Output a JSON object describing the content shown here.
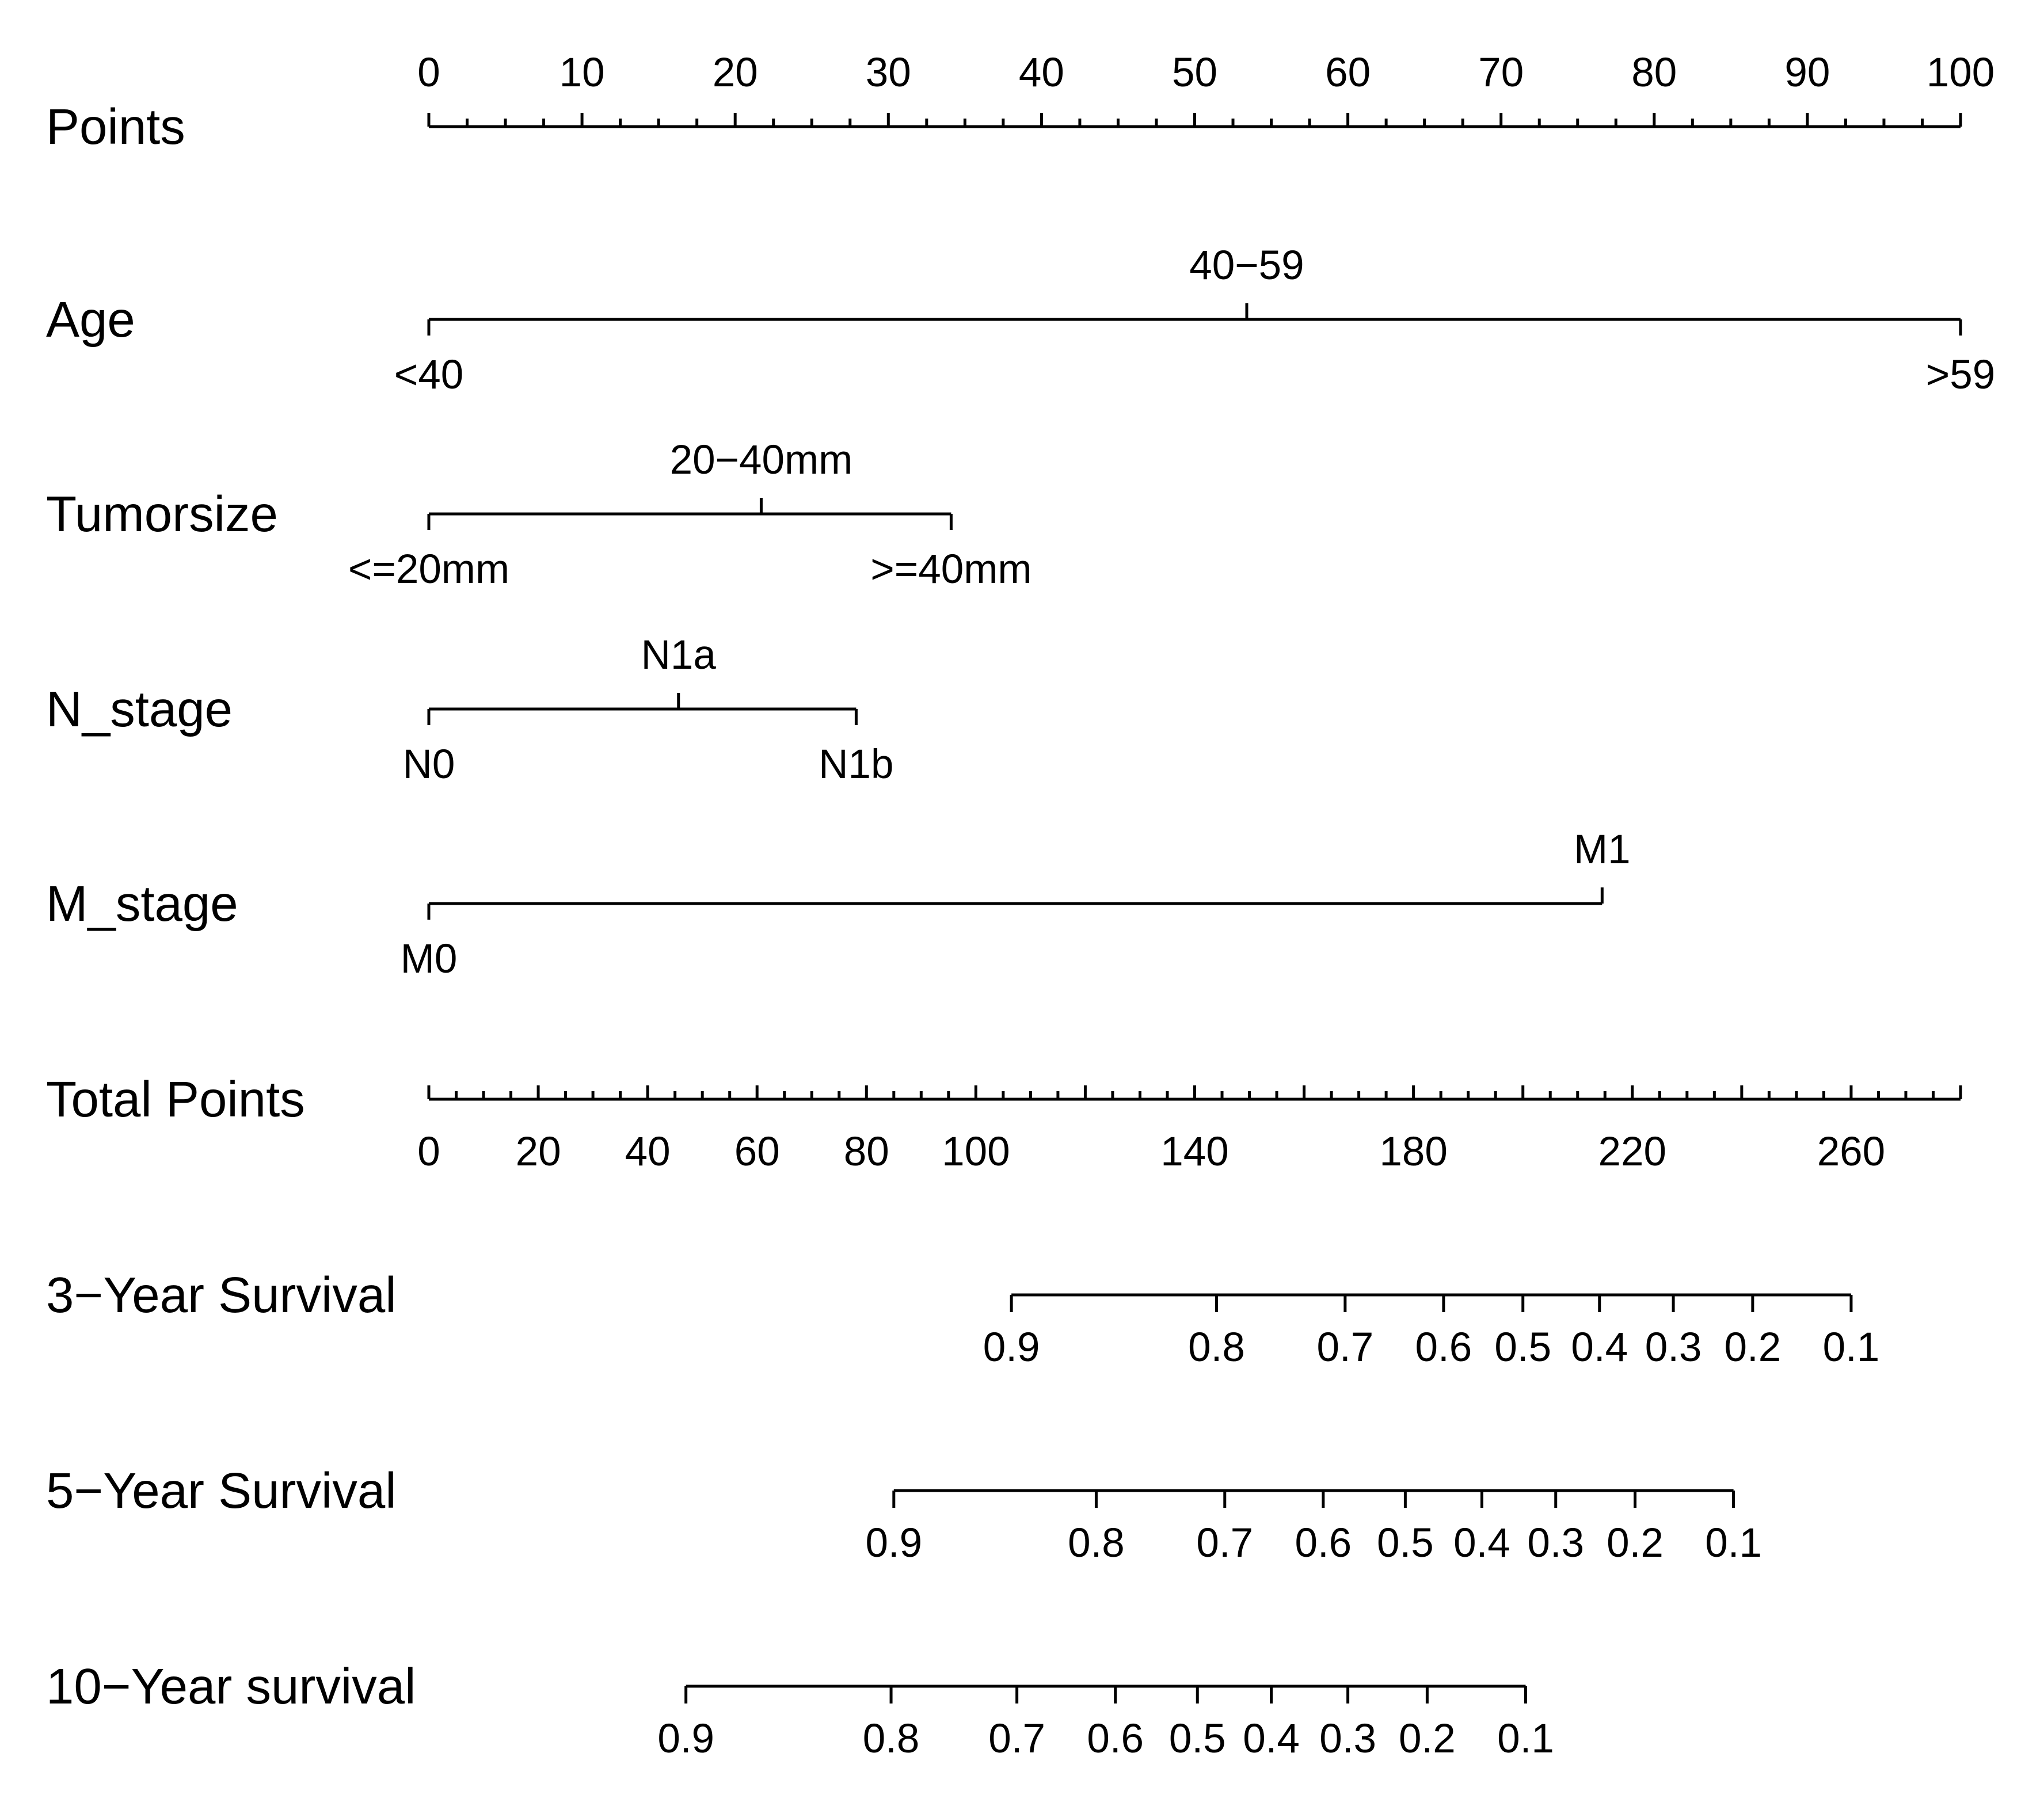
{
  "chart_data": {
    "type": "nomogram",
    "points_scale": {
      "label": "Points",
      "range": [
        0,
        100
      ],
      "major_ticks": [
        0,
        10,
        20,
        30,
        40,
        50,
        60,
        70,
        80,
        90,
        100
      ],
      "minor_step": 2.5
    },
    "variables": [
      {
        "name": "Age",
        "levels": [
          {
            "label": "<40",
            "points": 0
          },
          {
            "label": "40−59",
            "points": 53.4
          },
          {
            "label": ">59",
            "points": 100
          }
        ]
      },
      {
        "name": "Tumorsize",
        "levels": [
          {
            "label": "<=20mm",
            "points": 0
          },
          {
            "label": "20−40mm",
            "points": 21.7
          },
          {
            "label": ">=40mm",
            "points": 34.1
          }
        ]
      },
      {
        "name": "N_stage",
        "levels": [
          {
            "label": "N0",
            "points": 0
          },
          {
            "label": "N1a",
            "points": 16.3
          },
          {
            "label": "N1b",
            "points": 27.9
          }
        ]
      },
      {
        "name": "M_stage",
        "levels": [
          {
            "label": "M0",
            "points": 0
          },
          {
            "label": "M1",
            "points": 76.6
          }
        ]
      }
    ],
    "total_points": {
      "label": "Total Points",
      "range": [
        0,
        280
      ],
      "tick_labels": [
        0,
        20,
        40,
        60,
        80,
        100,
        140,
        180,
        220,
        260
      ],
      "minor_step": 5
    },
    "survival_scales": [
      {
        "label": "3−Year Survival",
        "ticks": [
          {
            "prob": "0.9",
            "total_points": 106.5
          },
          {
            "prob": "0.8",
            "total_points": 144
          },
          {
            "prob": "0.7",
            "total_points": 167.5
          },
          {
            "prob": "0.6",
            "total_points": 185.5
          },
          {
            "prob": "0.5",
            "total_points": 200
          },
          {
            "prob": "0.4",
            "total_points": 214
          },
          {
            "prob": "0.3",
            "total_points": 227.5
          },
          {
            "prob": "0.2",
            "total_points": 242
          },
          {
            "prob": "0.1",
            "total_points": 260
          }
        ]
      },
      {
        "label": "5−Year Survival",
        "ticks": [
          {
            "prob": "0.9",
            "total_points": 85
          },
          {
            "prob": "0.8",
            "total_points": 122
          },
          {
            "prob": "0.7",
            "total_points": 145.5
          },
          {
            "prob": "0.6",
            "total_points": 163.5
          },
          {
            "prob": "0.5",
            "total_points": 178.5
          },
          {
            "prob": "0.4",
            "total_points": 192.5
          },
          {
            "prob": "0.3",
            "total_points": 206
          },
          {
            "prob": "0.2",
            "total_points": 220.5
          },
          {
            "prob": "0.1",
            "total_points": 238.5
          }
        ]
      },
      {
        "label": "10−Year survival",
        "ticks": [
          {
            "prob": "0.9",
            "total_points": 47
          },
          {
            "prob": "0.8",
            "total_points": 84.5
          },
          {
            "prob": "0.7",
            "total_points": 107.5
          },
          {
            "prob": "0.6",
            "total_points": 125.5
          },
          {
            "prob": "0.5",
            "total_points": 140.5
          },
          {
            "prob": "0.4",
            "total_points": 154
          },
          {
            "prob": "0.3",
            "total_points": 168
          },
          {
            "prob": "0.2",
            "total_points": 182.5
          },
          {
            "prob": "0.1",
            "total_points": 200.5
          }
        ]
      }
    ]
  }
}
